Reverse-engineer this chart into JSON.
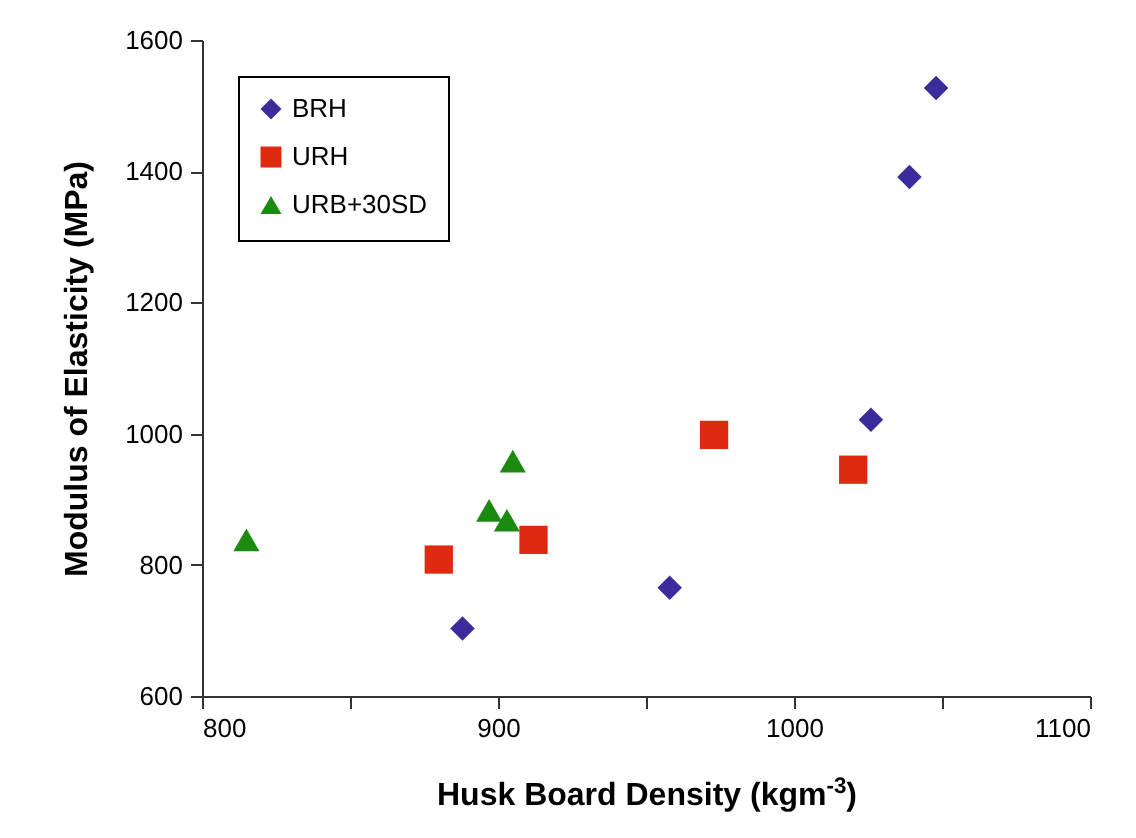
{
  "chart_data": {
    "type": "scatter",
    "xlabel": "Husk Board Density (kgm$^{-3}$)",
    "ylabel": "Modulus of Elasticity (MPa)",
    "xlim": [
      800,
      1100
    ],
    "xticks": [
      800,
      {
        "value": 850,
        "label": null
      },
      900,
      {
        "value": 950,
        "label": null
      },
      1000,
      {
        "value": 1050,
        "label": null
      },
      1100
    ],
    "ylim": [
      600,
      1600
    ],
    "yticks": [
      600,
      800,
      1000,
      1200,
      1400,
      1600
    ],
    "grid": false,
    "legend": "top left",
    "series": [
      {
        "name": "BRH",
        "color": "#3a2c9a",
        "marker": "diamond",
        "x": [
          888,
          958,
          1026,
          1039,
          1048
        ],
        "values": [
          703,
          765,
          1021,
          1391,
          1527
        ]
      },
      {
        "name": "URH",
        "color": "#dd2a10",
        "marker": "square",
        "x": [
          880,
          912,
          973,
          1020
        ],
        "values": [
          808,
          838,
          998,
          945
        ]
      },
      {
        "name": "URB+30SD",
        "color": "#1a8a10",
        "marker": "triangle",
        "x": [
          815,
          897,
          903,
          905
        ],
        "values": [
          838,
          883,
          868,
          958
        ]
      }
    ]
  }
}
